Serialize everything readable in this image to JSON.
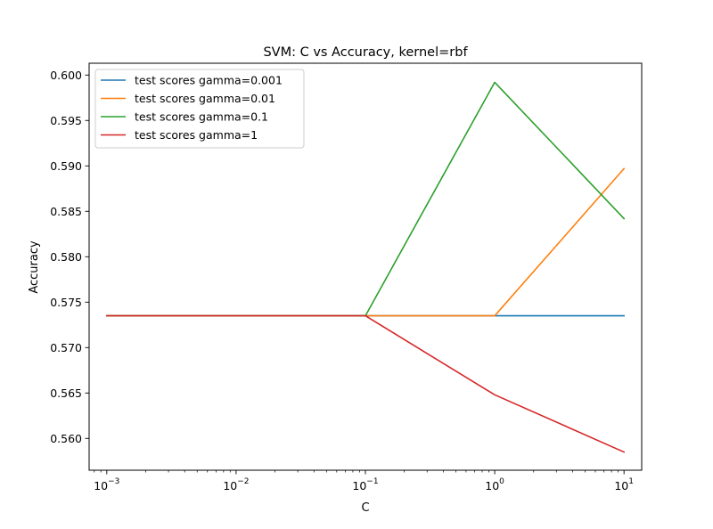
{
  "chart_data": {
    "type": "line",
    "title": "SVM: C vs Accuracy, kernel=rbf",
    "xlabel": "C",
    "ylabel": "Accuracy",
    "x_scale": "log",
    "x": [
      0.001,
      0.01,
      0.1,
      1,
      10
    ],
    "x_ticks": [
      {
        "value": 0.001,
        "base": "10",
        "exp": "−3"
      },
      {
        "value": 0.01,
        "base": "10",
        "exp": "−2"
      },
      {
        "value": 0.1,
        "base": "10",
        "exp": "−1"
      },
      {
        "value": 1,
        "base": "10",
        "exp": "0"
      },
      {
        "value": 10,
        "base": "10",
        "exp": "1"
      }
    ],
    "y_ticks": [
      "0.560",
      "0.565",
      "0.570",
      "0.575",
      "0.580",
      "0.585",
      "0.590",
      "0.595",
      "0.600"
    ],
    "xlim": [
      0.00073,
      13.7
    ],
    "ylim": [
      0.5565,
      0.6013
    ],
    "grid": false,
    "legend_position": "top-left",
    "series": [
      {
        "name": "test scores gamma=0.001",
        "color": "#1f77b4",
        "values": [
          0.5735,
          0.5735,
          0.5735,
          0.5735,
          0.5735
        ]
      },
      {
        "name": "test scores gamma=0.01",
        "color": "#ff7f0e",
        "values": [
          0.5735,
          0.5735,
          0.5735,
          0.5735,
          0.5897
        ]
      },
      {
        "name": "test scores gamma=0.1",
        "color": "#2ca02c",
        "values": [
          0.5735,
          0.5735,
          0.5735,
          0.5992,
          0.5842
        ]
      },
      {
        "name": "test scores gamma=1",
        "color": "#d62728",
        "values": [
          0.5735,
          0.5735,
          0.5735,
          0.5648,
          0.5585
        ]
      }
    ]
  }
}
